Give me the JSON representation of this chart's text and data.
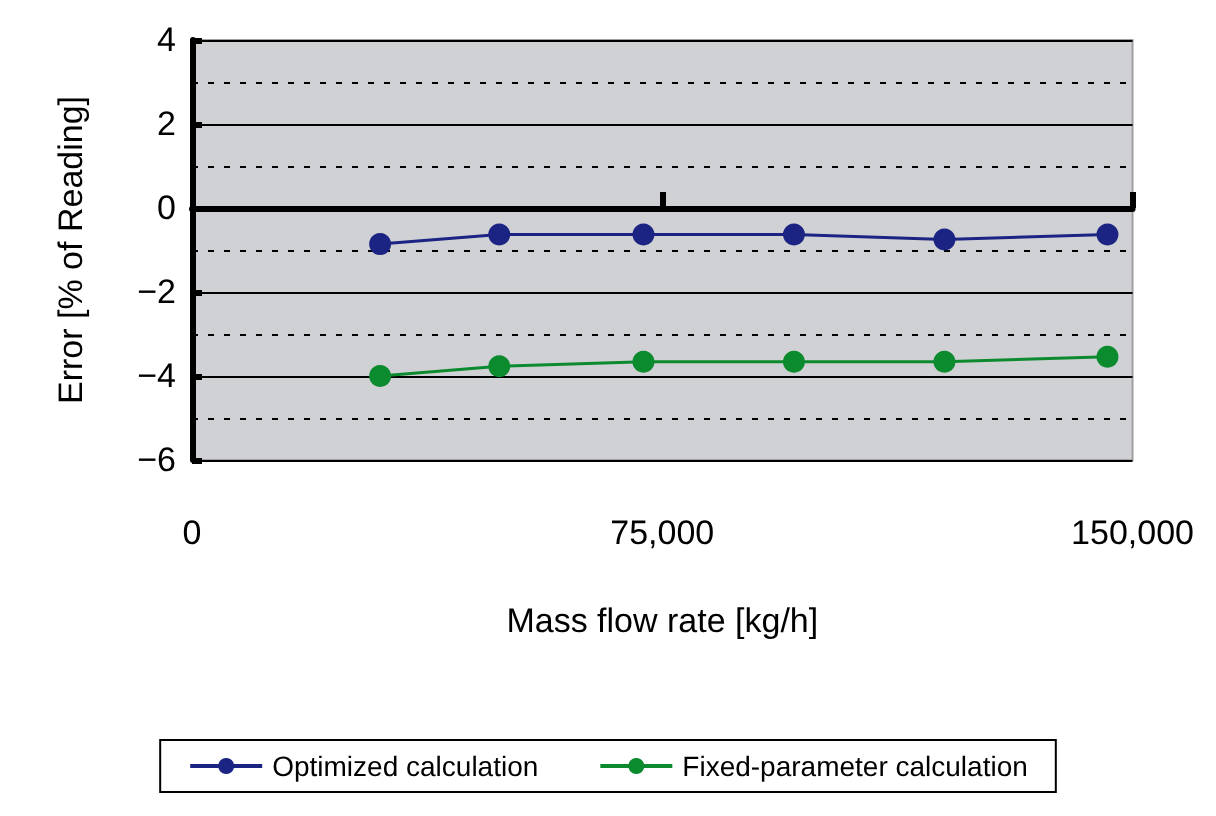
{
  "chart_data": {
    "type": "line",
    "xlabel": "Mass flow rate [kg/h]",
    "ylabel": "Error [% of Reading]",
    "x": [
      30000,
      49000,
      72000,
      96000,
      120000,
      146000
    ],
    "series": [
      {
        "name": "Optimized calculation",
        "color": "#1b2483",
        "values": [
          -0.86,
          -0.63,
          -0.63,
          -0.63,
          -0.75,
          -0.63
        ]
      },
      {
        "name": "Fixed-parameter calculation",
        "color": "#0b8a2e",
        "values": [
          -4.0,
          -3.77,
          -3.66,
          -3.66,
          -3.66,
          -3.54
        ]
      }
    ],
    "xlim": [
      0,
      150000
    ],
    "xticks": [
      0,
      {
        "value": 75000,
        "label": "75,000"
      },
      {
        "value": 150000,
        "label": "150,000"
      }
    ],
    "ylim": [
      -6,
      4
    ],
    "yticks": [
      -6,
      -4,
      -2,
      0,
      2,
      4
    ],
    "grid": "y",
    "legend": "bottom",
    "marker": "circle",
    "line_style": "solid"
  }
}
